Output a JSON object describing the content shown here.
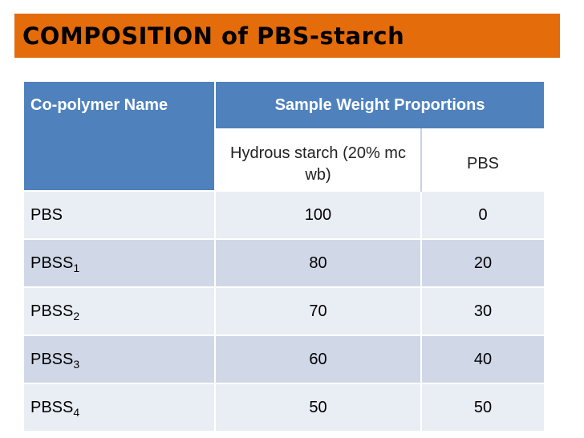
{
  "slide": {
    "title": "COMPOSITION of PBS-starch"
  },
  "table": {
    "header": {
      "col_name": "Co-polymer Name",
      "col_group": "Sample Weight Proportions",
      "sub_starch": "Hydrous starch (20% mc wb)",
      "sub_pbs": "PBS"
    },
    "rows": [
      {
        "name": "PBS",
        "sub": "",
        "starch": "100",
        "pbs": "0"
      },
      {
        "name": "PBSS",
        "sub": "1",
        "starch": "80",
        "pbs": "20"
      },
      {
        "name": "PBSS",
        "sub": "2",
        "starch": "70",
        "pbs": "30"
      },
      {
        "name": "PBSS",
        "sub": "3",
        "starch": "60",
        "pbs": "40"
      },
      {
        "name": "PBSS",
        "sub": "4",
        "starch": "50",
        "pbs": "50"
      }
    ]
  },
  "colors": {
    "title_bar": "#e46c0a",
    "header_blue": "#4f81bd",
    "row_light": "#e9edf4",
    "row_dark": "#d0d8e8"
  }
}
